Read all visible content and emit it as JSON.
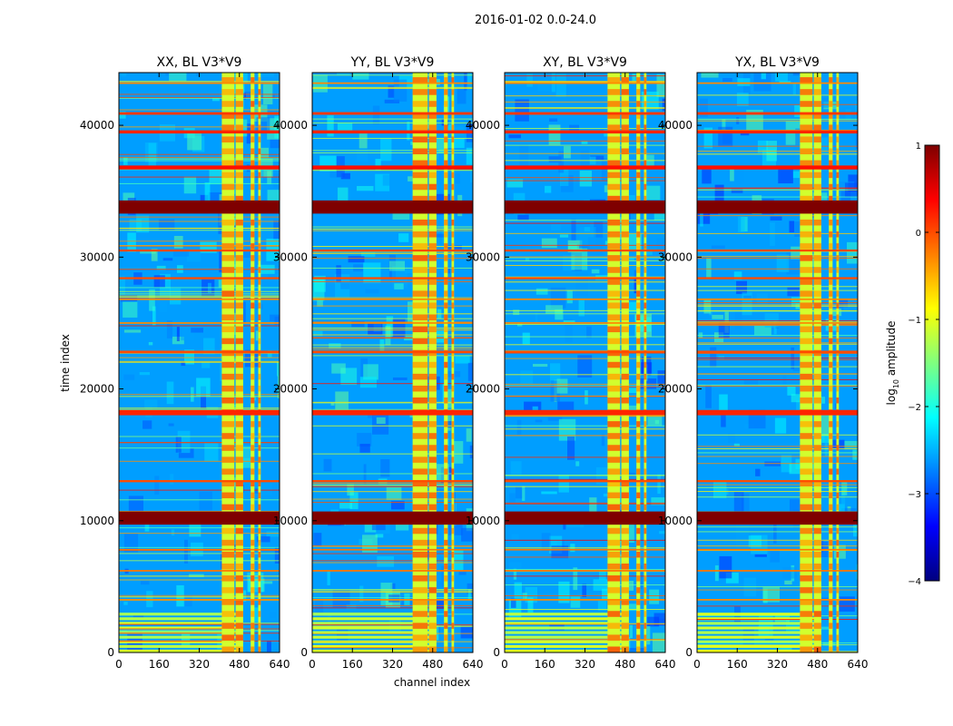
{
  "figure": {
    "suptitle": "2016-01-02 0.0-24.0",
    "background": "#ffffff"
  },
  "chart_data": {
    "type": "heatmap",
    "shared_ylabel": "time index",
    "shared_xlabel": "channel index",
    "colormap": "jet",
    "colorbar": {
      "label_prefix": "log",
      "label_sub": "10",
      "label_suffix": " amplitude",
      "range": [
        -4,
        1
      ],
      "ticks": [
        1,
        0,
        -1,
        -2,
        -3,
        -4
      ],
      "tick_labels": [
        "1",
        "0",
        "−1",
        "−2",
        "−3",
        "−4"
      ],
      "colors": [
        "#00007f",
        "#0000ff",
        "#007fff",
        "#00ffff",
        "#7fff7f",
        "#ffff00",
        "#ff7f00",
        "#ff0000",
        "#7f0000"
      ]
    },
    "xlim": [
      0,
      640
    ],
    "ylim": [
      0,
      44000
    ],
    "xticks": [
      0,
      160,
      320,
      480,
      640
    ],
    "xtick_labels": [
      "0",
      "160",
      "320",
      "480",
      "640"
    ],
    "yticks": [
      0,
      10000,
      20000,
      30000,
      40000
    ],
    "ytick_labels": [
      "0",
      "10000",
      "20000",
      "30000",
      "40000"
    ],
    "background_log_amplitude": -2.6,
    "panels": [
      {
        "title": "XX, BL V3*V9",
        "rfi_bands": [
          [
            410,
            460
          ],
          [
            465,
            495
          ],
          [
            525,
            540
          ],
          [
            555,
            565
          ]
        ]
      },
      {
        "title": "YY, BL V3*V9",
        "rfi_bands": [
          [
            400,
            460
          ],
          [
            465,
            495
          ],
          [
            525,
            540
          ],
          [
            555,
            565
          ]
        ]
      },
      {
        "title": "XY, BL V3*V9",
        "rfi_bands": [
          [
            410,
            460
          ],
          [
            465,
            495
          ],
          [
            525,
            540
          ],
          [
            555,
            565
          ]
        ]
      },
      {
        "title": "YX, BL V3*V9",
        "rfi_bands": [
          [
            410,
            460
          ],
          [
            465,
            495
          ],
          [
            525,
            540
          ],
          [
            555,
            565
          ]
        ]
      }
    ],
    "hot_time_rows": [
      {
        "t": 10200,
        "half_width": 500,
        "log_amplitude": 1.0
      },
      {
        "t": 33800,
        "half_width": 500,
        "log_amplitude": 1.0
      },
      {
        "t": 18200,
        "half_width": 200,
        "log_amplitude": 0.2
      },
      {
        "t": 36800,
        "half_width": 150,
        "log_amplitude": 0.3
      },
      {
        "t": 39500,
        "half_width": 120,
        "log_amplitude": 0.2
      },
      {
        "t": 40900,
        "half_width": 100,
        "log_amplitude": 0.1
      },
      {
        "t": 22800,
        "half_width": 100,
        "log_amplitude": 0.0
      },
      {
        "t": 30500,
        "half_width": 80,
        "log_amplitude": 0.0
      },
      {
        "t": 28400,
        "half_width": 80,
        "log_amplitude": 0.0
      },
      {
        "t": 13000,
        "half_width": 80,
        "log_amplitude": 0.0
      },
      {
        "t": 7800,
        "half_width": 60,
        "log_amplitude": -0.2
      },
      {
        "t": 6200,
        "half_width": 60,
        "log_amplitude": -0.2
      },
      {
        "t": 4000,
        "half_width": 60,
        "log_amplitude": -0.3
      },
      {
        "t": 25000,
        "half_width": 60,
        "log_amplitude": -0.3
      },
      {
        "t": 26800,
        "half_width": 60,
        "log_amplitude": -0.3
      },
      {
        "t": 43200,
        "half_width": 60,
        "log_amplitude": -0.3
      }
    ],
    "bright_low_time_block": {
      "t_range": [
        0,
        3000
      ],
      "log_amplitude": -1.3
    }
  }
}
